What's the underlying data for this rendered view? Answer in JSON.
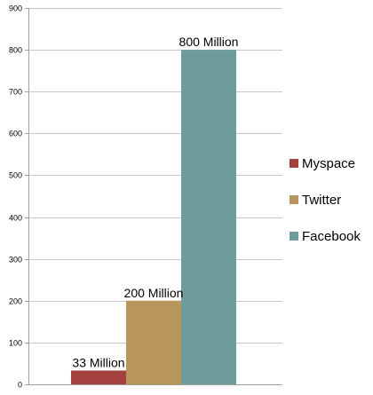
{
  "chart_data": {
    "type": "bar",
    "title": "",
    "xlabel": "",
    "ylabel": "",
    "ylim": [
      0,
      900
    ],
    "yticks": [
      0,
      100,
      200,
      300,
      400,
      500,
      600,
      700,
      800,
      900
    ],
    "grid": true,
    "legend_position": "right",
    "series": [
      {
        "name": "Myspace",
        "value": 33,
        "label": "33 Million",
        "color": "#a4403d"
      },
      {
        "name": "Twitter",
        "value": 200,
        "label": "200 Million",
        "color": "#b8955a"
      },
      {
        "name": "Facebook",
        "value": 800,
        "label": "800 Million",
        "color": "#6e9b9b"
      }
    ]
  }
}
